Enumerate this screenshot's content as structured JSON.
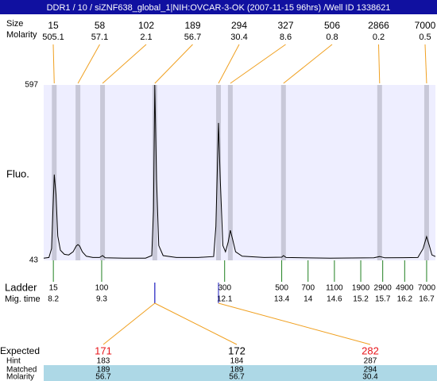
{
  "chart_data": {
    "type": "line",
    "title": "DDR1 / 10 / siZNF638_global_1|NIH:OVCAR-3-OK (2007-11-15 96hrs) /Well ID 1338621",
    "ylabel": "Fluo.",
    "ylim": [
      43,
      597
    ],
    "yticks": [
      43,
      597
    ],
    "xlim": [
      7.98,
      16.9
    ],
    "background": "#eeeeff",
    "x": [
      7.98,
      8.1,
      8.16,
      8.19,
      8.22,
      8.26,
      8.3,
      8.36,
      8.45,
      8.55,
      8.65,
      8.72,
      8.76,
      8.8,
      8.86,
      8.95,
      9.1,
      9.25,
      9.32,
      9.38,
      9.8,
      10.3,
      10.44,
      10.48,
      10.51,
      10.55,
      10.6,
      10.7,
      11.0,
      11.5,
      11.85,
      11.9,
      11.96,
      12.0,
      12.06,
      12.12,
      12.18,
      12.23,
      12.28,
      12.35,
      12.5,
      13.0,
      13.4,
      13.44,
      13.5,
      14.5,
      15.5,
      15.63,
      15.75,
      16.5,
      16.62,
      16.7,
      16.76,
      16.82,
      16.9
    ],
    "series": [
      {
        "color": "#000000",
        "values": [
          50,
          52,
          80,
          200,
          314,
          250,
          120,
          75,
          62,
          60,
          70,
          88,
          93,
          88,
          70,
          56,
          52,
          52,
          58,
          51,
          50,
          50,
          58,
          200,
          597,
          300,
          90,
          58,
          52,
          52,
          55,
          150,
          477,
          300,
          90,
          70,
          100,
          138,
          110,
          70,
          56,
          52,
          53,
          58,
          52,
          50,
          51,
          55,
          51,
          52,
          80,
          118,
          90,
          60,
          55
        ]
      }
    ],
    "peaks": {
      "size_label": "Size",
      "molarity_label": "Molarity",
      "color": "#f0a020",
      "band_color": "#c8c8d8",
      "x": [
        8.22,
        8.76,
        9.32,
        10.51,
        11.96,
        12.23,
        13.44,
        15.63,
        16.7
      ],
      "sizes": [
        15,
        58,
        102,
        189,
        294,
        327,
        506,
        2866,
        7000
      ],
      "molarity": [
        505.1,
        57.1,
        2.1,
        56.7,
        30.4,
        8.6,
        0.8,
        0.2,
        0.5
      ]
    },
    "ladder": {
      "label": "Ladder",
      "time_label": "Mig. time",
      "color": "#208020",
      "sizes": [
        15,
        100,
        300,
        500,
        700,
        1100,
        1900,
        2900,
        4900,
        7000
      ],
      "times": [
        8.2,
        9.3,
        12.1,
        13.4,
        14,
        14.6,
        15.2,
        15.7,
        16.2,
        16.7
      ]
    },
    "matching": {
      "row_labels": [
        "Expected",
        "Hint",
        "Matched",
        "Molarity"
      ],
      "band_color": "#add8e6",
      "marker_color": "#2020c0",
      "columns": [
        {
          "expected": 171,
          "color": "#e8141a",
          "hint": 183,
          "matched": 189,
          "molarity": 56.7
        },
        {
          "expected": 172,
          "color": "#000000",
          "hint": 184,
          "matched": 189,
          "molarity": 56.7
        },
        {
          "expected": 282,
          "color": "#e8141a",
          "hint": 287,
          "matched": 294,
          "molarity": 30.4
        }
      ]
    }
  }
}
